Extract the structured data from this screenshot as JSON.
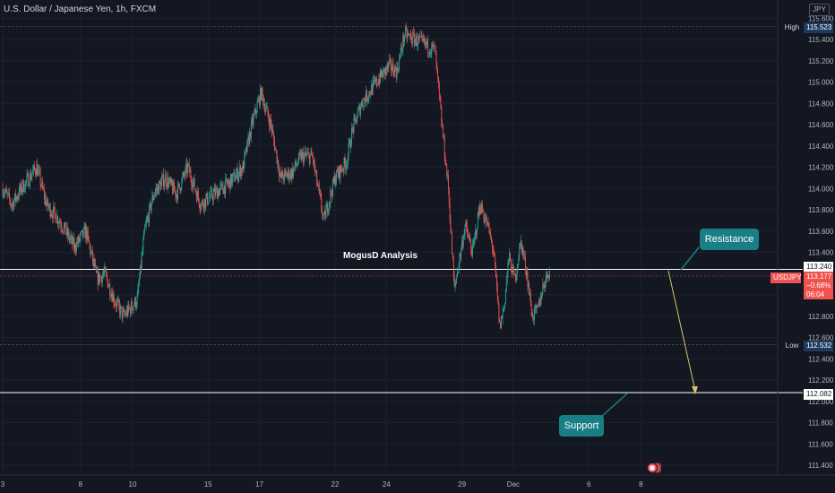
{
  "header": {
    "title": "U.S. Dollar / Japanese Yen, 1h, FXCM",
    "currency": "JPY"
  },
  "annotations": {
    "analysis_label": "MogusD Analysis",
    "resistance_label": "Resistance",
    "support_label": "Support"
  },
  "price_scale": {
    "high_label": "High",
    "high_value": "115.523",
    "resistance_value": "113.240",
    "symbol": "USDJPY",
    "current_price": "113.177",
    "current_change": "−0.68%",
    "countdown": "06:04",
    "low_label": "Low",
    "low_value": "112.532",
    "support_value": "112.082"
  },
  "colors": {
    "background": "#131722",
    "up": "#26a69a",
    "down": "#ef5350",
    "callout": "#1a7e85",
    "arrow": "#d4c56a"
  },
  "icons": {
    "news": "news-flag-icon"
  },
  "chart_data": {
    "type": "candlestick",
    "title": "U.S. Dollar / Japanese Yen, 1h, FXCM",
    "y_ticks": [
      111.4,
      111.6,
      111.8,
      112.0,
      112.2,
      112.4,
      112.6,
      112.8,
      113.0,
      113.2,
      113.4,
      113.6,
      113.8,
      114.0,
      114.2,
      114.4,
      114.6,
      114.8,
      115.0,
      115.2,
      115.4,
      115.6
    ],
    "y_tick_labels": [
      "111.400",
      "111.600",
      "111.800",
      "112.000",
      "112.200",
      "112.400",
      "112.600",
      "112.800",
      "113.000",
      "113.200",
      "113.400",
      "113.600",
      "113.800",
      "114.000",
      "114.200",
      "114.400",
      "114.600",
      "114.800",
      "115.000",
      "115.200",
      "115.400",
      "115.600"
    ],
    "x_ticks": [
      {
        "label": "3",
        "index": 0
      },
      {
        "label": "8",
        "index": 103
      },
      {
        "label": "10",
        "index": 172
      },
      {
        "label": "15",
        "index": 272
      },
      {
        "label": "17",
        "index": 340
      },
      {
        "label": "22",
        "index": 440
      },
      {
        "label": "24",
        "index": 508
      },
      {
        "label": "29",
        "index": 608
      },
      {
        "label": "Dec",
        "index": 676
      },
      {
        "label": "6",
        "index": 776
      },
      {
        "label": "8",
        "index": 845
      }
    ],
    "ylim": [
      111.3,
      115.7
    ],
    "levels": {
      "high": 115.523,
      "resistance": 113.24,
      "current": 113.177,
      "low": 112.532,
      "support": 112.082
    },
    "path_anchors": [
      [
        0,
        114.0
      ],
      [
        12,
        113.85
      ],
      [
        25,
        114.0
      ],
      [
        45,
        114.2
      ],
      [
        58,
        113.85
      ],
      [
        75,
        113.7
      ],
      [
        95,
        113.45
      ],
      [
        110,
        113.6
      ],
      [
        125,
        113.15
      ],
      [
        135,
        113.2
      ],
      [
        148,
        112.95
      ],
      [
        160,
        112.8
      ],
      [
        178,
        112.95
      ],
      [
        188,
        113.6
      ],
      [
        200,
        113.95
      ],
      [
        215,
        114.1
      ],
      [
        230,
        113.95
      ],
      [
        245,
        114.2
      ],
      [
        262,
        113.85
      ],
      [
        280,
        113.95
      ],
      [
        300,
        114.05
      ],
      [
        318,
        114.2
      ],
      [
        330,
        114.6
      ],
      [
        342,
        114.9
      ],
      [
        355,
        114.6
      ],
      [
        368,
        114.1
      ],
      [
        383,
        114.15
      ],
      [
        395,
        114.3
      ],
      [
        410,
        114.3
      ],
      [
        425,
        113.7
      ],
      [
        440,
        114.1
      ],
      [
        455,
        114.25
      ],
      [
        463,
        114.55
      ],
      [
        475,
        114.8
      ],
      [
        490,
        114.95
      ],
      [
        500,
        115.05
      ],
      [
        512,
        115.15
      ],
      [
        522,
        115.1
      ],
      [
        532,
        115.45
      ],
      [
        545,
        115.4
      ],
      [
        560,
        115.35
      ],
      [
        572,
        115.3
      ],
      [
        580,
        114.7
      ],
      [
        590,
        114.0
      ],
      [
        598,
        113.05
      ],
      [
        605,
        113.35
      ],
      [
        612,
        113.65
      ],
      [
        622,
        113.4
      ],
      [
        632,
        113.85
      ],
      [
        642,
        113.65
      ],
      [
        650,
        113.4
      ],
      [
        658,
        112.7
      ],
      [
        664,
        112.9
      ],
      [
        670,
        113.35
      ],
      [
        678,
        113.15
      ],
      [
        686,
        113.5
      ],
      [
        694,
        113.2
      ],
      [
        701,
        112.8
      ],
      [
        708,
        112.85
      ],
      [
        716,
        113.1
      ],
      [
        724,
        113.24
      ]
    ],
    "last_index": 724
  }
}
